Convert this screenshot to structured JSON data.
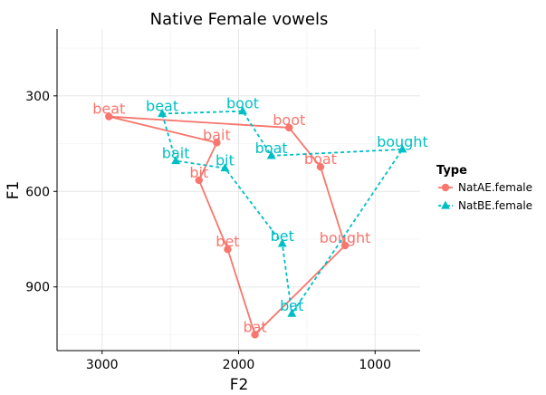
{
  "chart_data": {
    "type": "scatter",
    "title": "Native Female vowels",
    "xlabel": "F2",
    "ylabel": "F1",
    "x_reversed": true,
    "y_reversed": true,
    "xlim": [
      3330,
      670
    ],
    "ylim": [
      90,
      1100
    ],
    "x_ticks": [
      {
        "value": 3000,
        "label": "3000"
      },
      {
        "value": 2000,
        "label": "2000"
      },
      {
        "value": 1000,
        "label": "1000"
      }
    ],
    "y_ticks": [
      {
        "value": 300,
        "label": "300"
      },
      {
        "value": 600,
        "label": "600"
      },
      {
        "value": 900,
        "label": "900"
      }
    ],
    "grid": true,
    "legend": {
      "title": "Type",
      "placement": "right",
      "entries": [
        {
          "label": "NatAE.female",
          "color": "#F8766D",
          "marker": "circle"
        },
        {
          "label": "NatBE.female",
          "color": "#00BFC4",
          "marker": "triangle"
        }
      ]
    },
    "series": [
      {
        "name": "NatAE.female",
        "color": "#F8766D",
        "marker": "circle",
        "line": "solid",
        "points": [
          {
            "label": "beat",
            "x": 2950,
            "y": 365
          },
          {
            "label": "boot",
            "x": 1630,
            "y": 400
          },
          {
            "label": "boat",
            "x": 1400,
            "y": 523
          },
          {
            "label": "bought",
            "x": 1220,
            "y": 770
          },
          {
            "label": "bat",
            "x": 1880,
            "y": 1050
          },
          {
            "label": "bet",
            "x": 2080,
            "y": 782
          },
          {
            "label": "bit",
            "x": 2290,
            "y": 565
          },
          {
            "label": "bait",
            "x": 2160,
            "y": 447
          }
        ],
        "polygon_order": [
          "beat",
          "boot",
          "boat",
          "bought",
          "bat",
          "bet",
          "bit",
          "bait"
        ]
      },
      {
        "name": "NatBE.female",
        "color": "#00BFC4",
        "marker": "triangle",
        "line": "dashed",
        "points": [
          {
            "label": "beat",
            "x": 2560,
            "y": 356
          },
          {
            "label": "boot",
            "x": 1970,
            "y": 348
          },
          {
            "label": "boat",
            "x": 1760,
            "y": 488
          },
          {
            "label": "bought",
            "x": 800,
            "y": 468
          },
          {
            "label": "bat",
            "x": 1610,
            "y": 984
          },
          {
            "label": "bet",
            "x": 1680,
            "y": 764
          },
          {
            "label": "bit",
            "x": 2100,
            "y": 527
          },
          {
            "label": "bait",
            "x": 2460,
            "y": 504
          }
        ],
        "polygon_order": [
          "beat",
          "boot",
          "boat",
          "bought",
          "bat",
          "bet",
          "bit",
          "bait"
        ]
      }
    ]
  }
}
